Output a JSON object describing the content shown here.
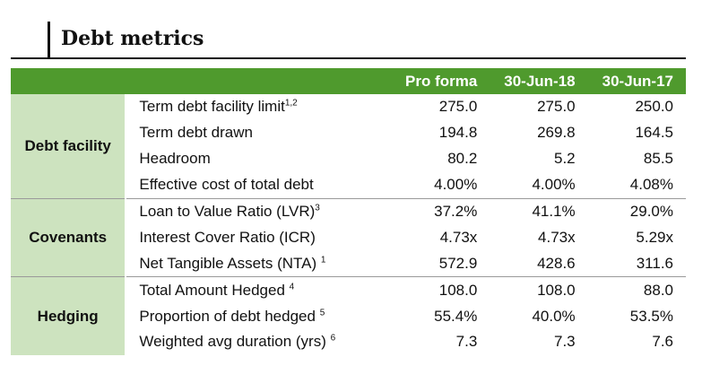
{
  "title": "Debt metrics",
  "columns": [
    "Pro forma",
    "30-Jun-18",
    "30-Jun-17"
  ],
  "groups": [
    {
      "name": "Debt facility",
      "rows": [
        {
          "label": "Term debt facility limit",
          "sup": "1,2",
          "values": [
            "275.0",
            "275.0",
            "250.0"
          ]
        },
        {
          "label": "Term debt drawn",
          "sup": "",
          "values": [
            "194.8",
            "269.8",
            "164.5"
          ]
        },
        {
          "label": "Headroom",
          "sup": "",
          "values": [
            "80.2",
            "5.2",
            "85.5"
          ]
        },
        {
          "label": "Effective cost of total debt",
          "sup": "",
          "values": [
            "4.00%",
            "4.00%",
            "4.08%"
          ]
        }
      ]
    },
    {
      "name": "Covenants",
      "rows": [
        {
          "label": "Loan to Value Ratio (LVR)",
          "sup": "3",
          "values": [
            "37.2%",
            "41.1%",
            "29.0%"
          ]
        },
        {
          "label": "Interest Cover Ratio (ICR)",
          "sup": "",
          "values": [
            "4.73x",
            "4.73x",
            "5.29x"
          ]
        },
        {
          "label": "Net Tangible Assets (NTA) ",
          "sup": "1",
          "values": [
            "572.9",
            "428.6",
            "311.6"
          ]
        }
      ]
    },
    {
      "name": "Hedging",
      "rows": [
        {
          "label": "Total Amount Hedged ",
          "sup": "4",
          "values": [
            "108.0",
            "108.0",
            "88.0"
          ]
        },
        {
          "label": "Proportion of debt hedged ",
          "sup": "5",
          "values": [
            "55.4%",
            "40.0%",
            "53.5%"
          ]
        },
        {
          "label": "Weighted avg duration (yrs) ",
          "sup": "6",
          "values": [
            "7.3",
            "7.3",
            "7.6"
          ]
        }
      ]
    }
  ],
  "colors": {
    "header_green": "#4f9a2d",
    "group_green": "#cde3bf"
  }
}
